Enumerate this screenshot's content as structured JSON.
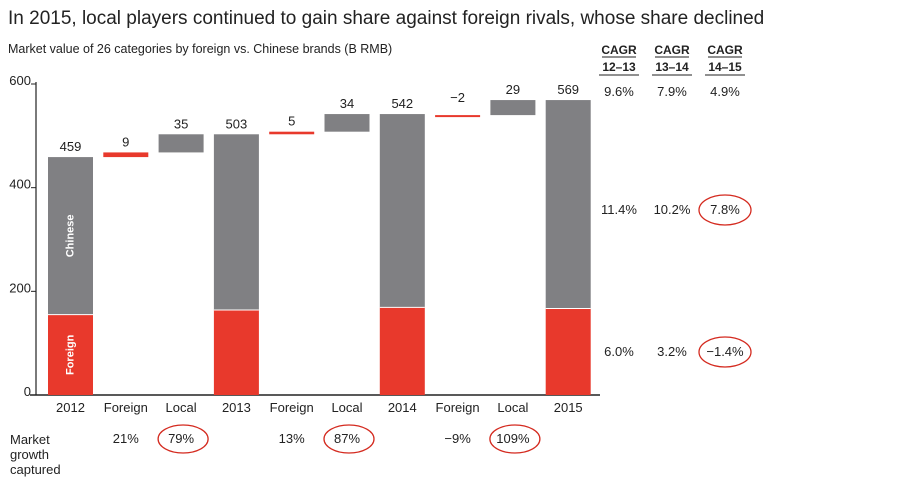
{
  "chart_data": {
    "type": "bar",
    "subtype": "waterfall",
    "title": "In 2015, local players continued to gain share against foreign rivals, whose share declined",
    "subtitle": "Market value of 26 categories by foreign vs. Chinese brands (B RMB)",
    "ylim": [
      0,
      600
    ],
    "yticks": [
      0,
      200,
      400,
      600
    ],
    "categories": [
      "2012",
      "Foreign",
      "Local",
      "2013",
      "Foreign",
      "Local",
      "2014",
      "Foreign",
      "Local",
      "2015"
    ],
    "bars": [
      {
        "category": "2012",
        "kind": "total",
        "label": "459",
        "foreign": 155,
        "chinese": 304,
        "total": 459
      },
      {
        "category": "Foreign",
        "kind": "change",
        "label": "9",
        "base": 459,
        "value": 9,
        "color": "#e8392c"
      },
      {
        "category": "Local",
        "kind": "change",
        "label": "35",
        "base": 468,
        "value": 35,
        "color": "#808083"
      },
      {
        "category": "2013",
        "kind": "total",
        "label": "503",
        "foreign": 164,
        "chinese": 339,
        "total": 503
      },
      {
        "category": "Foreign",
        "kind": "change",
        "label": "5",
        "base": 503,
        "value": 5,
        "color": "#e8392c"
      },
      {
        "category": "Local",
        "kind": "change",
        "label": "34",
        "base": 508,
        "value": 34,
        "color": "#808083"
      },
      {
        "category": "2014",
        "kind": "total",
        "label": "542",
        "foreign": 169,
        "chinese": 373,
        "total": 542
      },
      {
        "category": "Foreign",
        "kind": "change",
        "label": "−2",
        "base": 540,
        "value": -2,
        "color": "#e8392c"
      },
      {
        "category": "Local",
        "kind": "change",
        "label": "29",
        "base": 540,
        "value": 29,
        "color": "#808083"
      },
      {
        "category": "2015",
        "kind": "total",
        "label": "569",
        "foreign": 167,
        "chinese": 402,
        "total": 569
      }
    ],
    "series": [
      {
        "name": "Foreign",
        "color": "#e8392c"
      },
      {
        "name": "Chinese",
        "color": "#808083"
      }
    ],
    "cagr": {
      "headers": [
        [
          "CAGR",
          "12–13"
        ],
        [
          "CAGR",
          "13–14"
        ],
        [
          "CAGR",
          "14–15"
        ]
      ],
      "rows": [
        {
          "row": "total",
          "values": [
            "9.6%",
            "7.9%",
            "4.9%"
          ],
          "circled": [
            false,
            false,
            false
          ]
        },
        {
          "row": "chinese",
          "values": [
            "11.4%",
            "10.2%",
            "7.8%"
          ],
          "circled": [
            false,
            false,
            true
          ]
        },
        {
          "row": "foreign",
          "values": [
            "6.0%",
            "3.2%",
            "−1.4%"
          ],
          "circled": [
            false,
            false,
            true
          ]
        }
      ]
    },
    "market_growth_captured": {
      "label": [
        "Market",
        "growth",
        "captured"
      ],
      "values": [
        {
          "category_index": 1,
          "text": "21%",
          "circled": false
        },
        {
          "category_index": 2,
          "text": "79%",
          "circled": true
        },
        {
          "category_index": 4,
          "text": "13%",
          "circled": false
        },
        {
          "category_index": 5,
          "text": "87%",
          "circled": true
        },
        {
          "category_index": 7,
          "text": "−9%",
          "circled": false
        },
        {
          "category_index": 8,
          "text": "109%",
          "circled": true
        }
      ]
    },
    "colors": {
      "foreign": "#e8392c",
      "chinese": "#808083",
      "circle": "#d42a1f"
    }
  }
}
